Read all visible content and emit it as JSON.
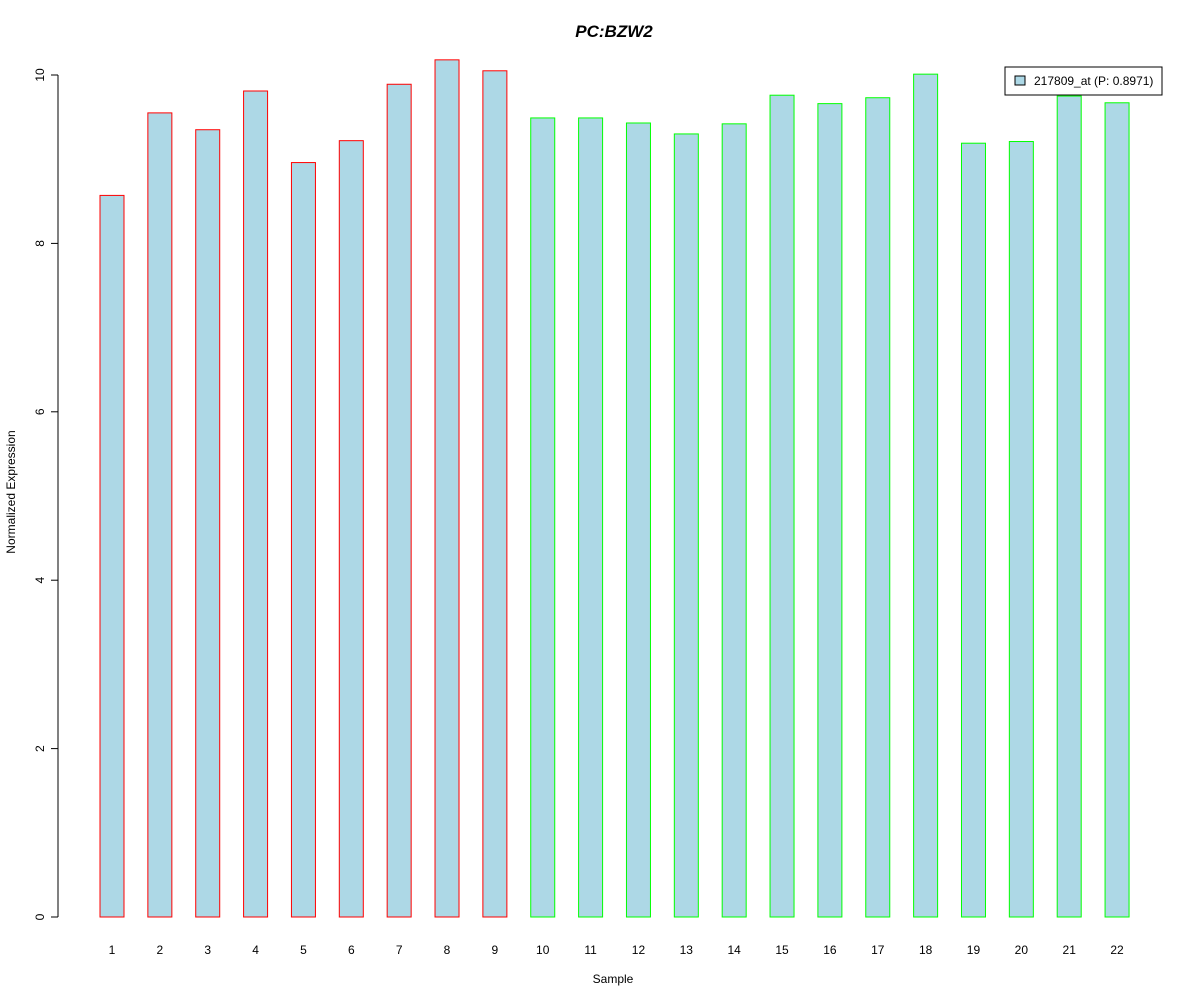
{
  "chart_data": {
    "type": "bar",
    "title": "PC:BZW2",
    "xlabel": "Sample",
    "ylabel": "Normalized Expression",
    "categories": [
      "1",
      "2",
      "3",
      "4",
      "5",
      "6",
      "7",
      "8",
      "9",
      "10",
      "11",
      "12",
      "13",
      "14",
      "15",
      "16",
      "17",
      "18",
      "19",
      "20",
      "21",
      "22"
    ],
    "series": [
      {
        "name": "217809_at (P: 0.8971)",
        "values": [
          8.57,
          9.55,
          9.35,
          9.81,
          8.96,
          9.22,
          9.89,
          10.18,
          10.05,
          9.49,
          9.49,
          9.43,
          9.3,
          9.42,
          9.76,
          9.66,
          9.73,
          10.01,
          9.19,
          9.21,
          9.75,
          9.67
        ]
      }
    ],
    "ylim": [
      0,
      10
    ],
    "yticks": [
      0,
      2,
      4,
      6,
      8,
      10
    ],
    "grid": false,
    "legend_position": "top-right",
    "colors": {
      "title": "#0000CC",
      "bar_fill": "#ADD8E6",
      "group1_border": "#FF0000",
      "group2_border": "#00FF00",
      "axis": "#000000"
    },
    "border_groups": [
      {
        "from": 1,
        "to": 9,
        "color": "#FF0000"
      },
      {
        "from": 10,
        "to": 22,
        "color": "#00FF00"
      }
    ]
  }
}
